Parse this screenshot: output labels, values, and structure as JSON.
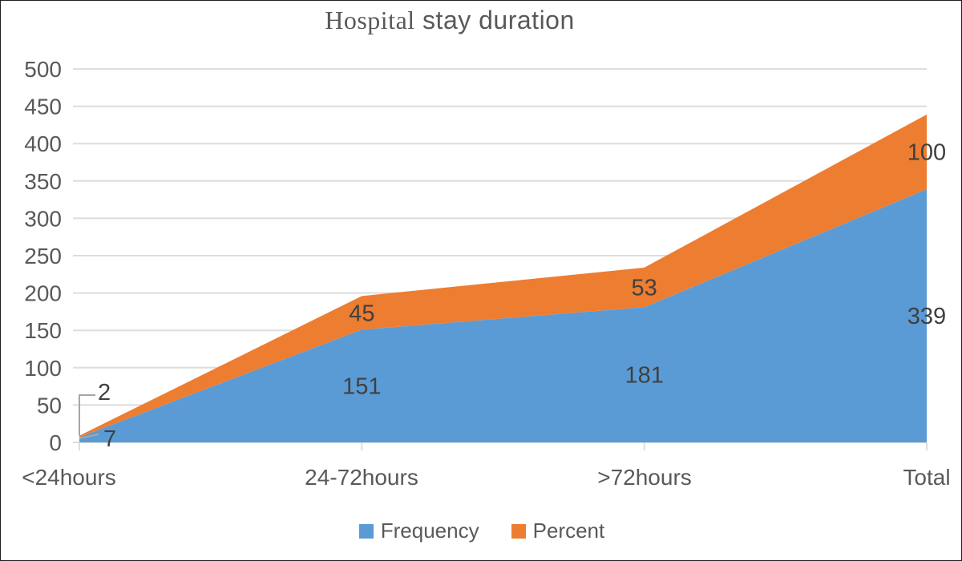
{
  "title": {
    "text": "Hospital stay duration",
    "serif_part": "Hospital",
    "sans_part": " stay duration",
    "color": "#595959"
  },
  "chart_data": {
    "type": "area",
    "stacked": true,
    "title": "Hospital stay duration",
    "categories": [
      "<24hours",
      "24-72hours",
      ">72hours",
      "Total"
    ],
    "series": [
      {
        "name": "Frequency",
        "color": "#5B9BD5",
        "values": [
          7,
          151,
          181,
          339
        ]
      },
      {
        "name": "Percent",
        "color": "#ED7D31",
        "values": [
          2,
          45,
          53,
          100
        ]
      }
    ],
    "y_axis": {
      "min": 0,
      "max": 500,
      "step": 50,
      "ticks": [
        0,
        50,
        100,
        150,
        200,
        250,
        300,
        350,
        400,
        450,
        500
      ]
    },
    "xlabel": "",
    "ylabel": "",
    "grid": true,
    "legend_position": "bottom",
    "data_labels_shown": true,
    "axis_label_color": "#595959",
    "data_label_color": "#404040",
    "gridline_color": "#DDDDDD",
    "leader_line_color": "#A6A6A6"
  }
}
